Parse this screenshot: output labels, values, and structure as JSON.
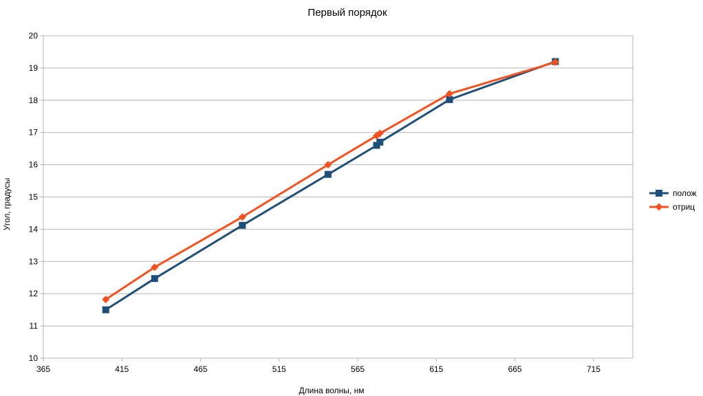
{
  "chart_data": {
    "type": "line",
    "title": "Первый порядок",
    "xlabel": "Длина волны, нм",
    "ylabel": "Угол, градусы",
    "xlim": [
      365,
      740
    ],
    "ylim": [
      10,
      20
    ],
    "xticks": [
      365,
      415,
      465,
      515,
      565,
      615,
      665,
      715
    ],
    "yticks": [
      10,
      11,
      12,
      13,
      14,
      15,
      16,
      17,
      18,
      19,
      20
    ],
    "grid": true,
    "legend_position": "right",
    "series": [
      {
        "name": "полож",
        "color": "#1f4e79",
        "marker": "square",
        "points": [
          [
            404.7,
            11.5
          ],
          [
            435.8,
            12.47
          ],
          [
            491.6,
            14.12
          ],
          [
            546.1,
            15.7
          ],
          [
            577.0,
            16.6
          ],
          [
            579.1,
            16.7
          ],
          [
            623.4,
            18.02
          ],
          [
            690.7,
            19.2
          ]
        ]
      },
      {
        "name": "отриц",
        "color": "#f4511e",
        "marker": "diamond",
        "points": [
          [
            404.7,
            11.82
          ],
          [
            435.8,
            12.82
          ],
          [
            491.6,
            14.38
          ],
          [
            546.1,
            16.0
          ],
          [
            577.0,
            16.9
          ],
          [
            579.1,
            16.97
          ],
          [
            623.4,
            18.2
          ],
          [
            690.7,
            19.18
          ]
        ]
      }
    ]
  }
}
